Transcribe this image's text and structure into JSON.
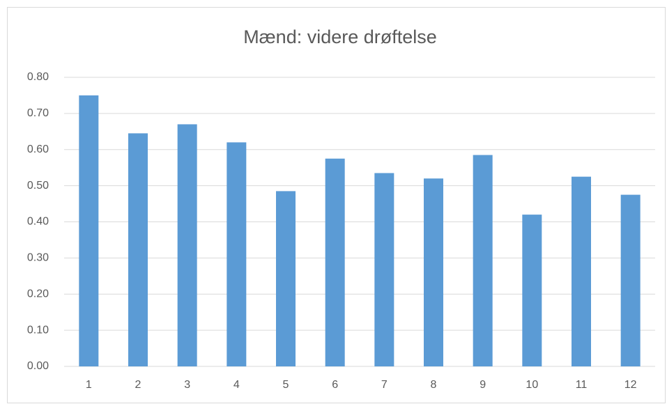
{
  "chart_data": {
    "type": "bar",
    "title": "Mænd: videre drøftelse",
    "categories": [
      "1",
      "2",
      "3",
      "4",
      "5",
      "6",
      "7",
      "8",
      "9",
      "10",
      "11",
      "12"
    ],
    "values": [
      0.75,
      0.645,
      0.67,
      0.62,
      0.485,
      0.575,
      0.535,
      0.52,
      0.585,
      0.42,
      0.525,
      0.475
    ],
    "color": "#5b9bd5",
    "ylim": [
      0,
      0.8
    ],
    "yticks": [
      {
        "value": 0,
        "label": "0.00"
      },
      {
        "value": 0.1,
        "label": "0.10"
      },
      {
        "value": 0.2,
        "label": "0.20"
      },
      {
        "value": 0.3,
        "label": "0.30"
      },
      {
        "value": 0.4,
        "label": "0.40"
      },
      {
        "value": 0.5,
        "label": "0.50"
      },
      {
        "value": 0.6,
        "label": "0.60"
      },
      {
        "value": 0.7,
        "label": "0.70"
      },
      {
        "value": 0.8,
        "label": "0.80"
      }
    ],
    "grid": true
  }
}
